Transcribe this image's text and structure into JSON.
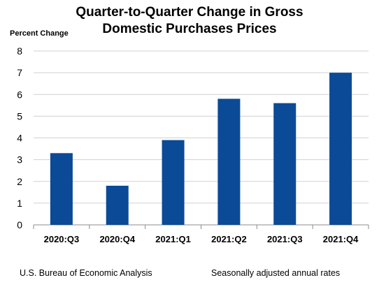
{
  "chart_data": {
    "type": "bar",
    "title_lines": [
      "Quarter-to-Quarter Change in Gross",
      "Domestic Purchases Prices"
    ],
    "ylabel": "Percent Change",
    "xlabel": "",
    "categories": [
      "2020:Q3",
      "2020:Q4",
      "2021:Q1",
      "2021:Q2",
      "2021:Q3",
      "2021:Q4"
    ],
    "values": [
      3.3,
      1.8,
      3.9,
      5.8,
      5.6,
      7.0
    ],
    "ylim": [
      0,
      8
    ],
    "yticks": [
      "0",
      "1",
      "2",
      "3",
      "4",
      "5",
      "6",
      "7",
      "8"
    ],
    "grid": true,
    "bar_color": "#0b4a96",
    "grid_color": "#d0d0d0"
  },
  "footer": {
    "source": "U.S. Bureau of Economic Analysis",
    "note": "Seasonally adjusted annual rates"
  }
}
